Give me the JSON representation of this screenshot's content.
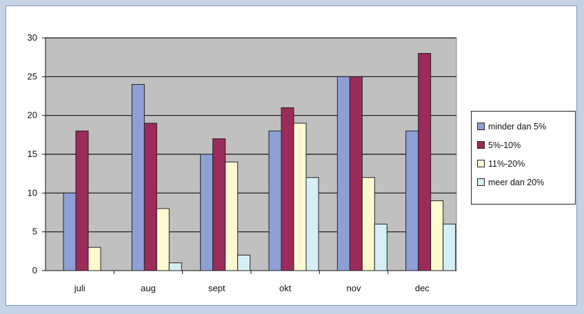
{
  "chart_data": {
    "type": "bar",
    "categories": [
      "juli",
      "aug",
      "sept",
      "okt",
      "nov",
      "dec"
    ],
    "series": [
      {
        "name": "minder dan 5%",
        "values": [
          10,
          24,
          15,
          18,
          25,
          18
        ],
        "color": "#8e9fd6"
      },
      {
        "name": "5%-10%",
        "values": [
          18,
          19,
          17,
          21,
          25,
          28
        ],
        "color": "#9b2b5a"
      },
      {
        "name": "11%-20%",
        "values": [
          3,
          8,
          14,
          19,
          12,
          9
        ],
        "color": "#fff9d1"
      },
      {
        "name": "meer dan 20%",
        "values": [
          0,
          1,
          2,
          12,
          6,
          6
        ],
        "color": "#d4f0f6"
      }
    ],
    "ylim": [
      0,
      30
    ],
    "yticks": [
      "0",
      "5",
      "10",
      "15",
      "20",
      "25",
      "30"
    ],
    "grid": true,
    "legend_position": "right",
    "plot_background": "#c0c0c0",
    "title": "",
    "xlabel": "",
    "ylabel": ""
  }
}
